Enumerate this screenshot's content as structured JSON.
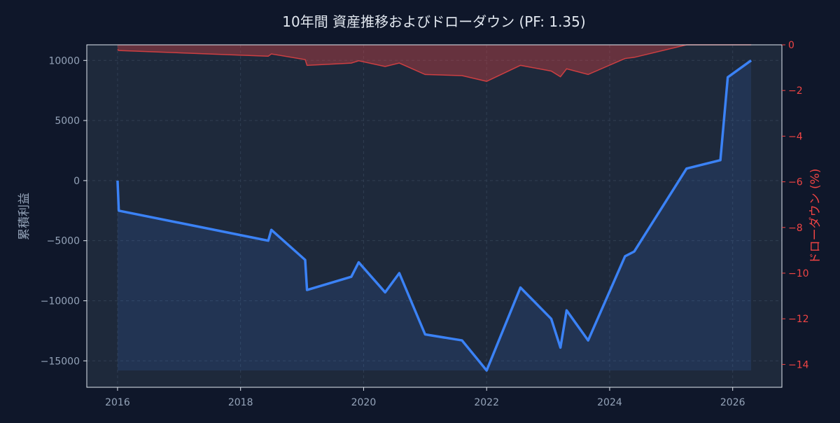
{
  "chart_data": {
    "type": "line",
    "title": "10年間 資産推移およびドローダウン (PF: 1.35)",
    "left_axis": {
      "label": "累積利益",
      "ylim": [
        -17200,
        11300
      ],
      "ticks": [
        10000,
        5000,
        0,
        -5000,
        -10000,
        -15000
      ],
      "tick_labels": [
        "10000",
        "5000",
        "0",
        "−5000",
        "−10000",
        "−15000"
      ]
    },
    "right_axis": {
      "label": "ドローダウン (%)",
      "ylim": [
        -15,
        0
      ],
      "ticks": [
        0,
        -2,
        -4,
        -6,
        -8,
        -10,
        -12,
        -14
      ],
      "tick_labels": [
        "0",
        "−2",
        "−4",
        "−6",
        "−8",
        "−10",
        "−12",
        "−14"
      ]
    },
    "x_axis": {
      "xlim": [
        2015.5,
        2026.8
      ],
      "ticks": [
        2016,
        2018,
        2020,
        2022,
        2024,
        2026
      ],
      "tick_labels": [
        "2016",
        "2018",
        "2020",
        "2022",
        "2024",
        "2026"
      ]
    },
    "grid": true,
    "series": [
      {
        "color": "#3b82f6",
        "axis": "left",
        "x": [
          2016.0,
          2016.02,
          2018.45,
          2018.5,
          2019.05,
          2019.08,
          2019.8,
          2019.92,
          2020.35,
          2020.58,
          2021.0,
          2021.6,
          2022.0,
          2022.55,
          2023.05,
          2023.2,
          2023.3,
          2023.65,
          2024.25,
          2024.4,
          2025.25,
          2025.8,
          2025.92,
          2026.3
        ],
        "y": [
          0,
          -2500,
          -5000,
          -4100,
          -6600,
          -9100,
          -8000,
          -6800,
          -9300,
          -7700,
          -12800,
          -13300,
          -15800,
          -8900,
          -11500,
          -13900,
          -10800,
          -13300,
          -6300,
          -5900,
          1000,
          1700,
          8600,
          10000
        ]
      },
      {
        "color": "#ef4444",
        "axis": "right",
        "x": [
          2016.0,
          2016.02,
          2018.45,
          2018.5,
          2019.05,
          2019.08,
          2019.8,
          2019.92,
          2020.35,
          2020.58,
          2021.0,
          2021.6,
          2022.0,
          2022.55,
          2023.05,
          2023.2,
          2023.3,
          2023.65,
          2024.25,
          2024.4,
          2025.25,
          2025.8,
          2025.92,
          2026.3
        ],
        "y": [
          -0.2,
          -0.25,
          -0.5,
          -0.4,
          -0.65,
          -0.9,
          -0.8,
          -0.7,
          -0.95,
          -0.8,
          -1.3,
          -1.35,
          -1.6,
          -0.9,
          -1.15,
          -1.4,
          -1.05,
          -1.3,
          -0.6,
          -0.55,
          0,
          0,
          0,
          0
        ]
      }
    ]
  }
}
